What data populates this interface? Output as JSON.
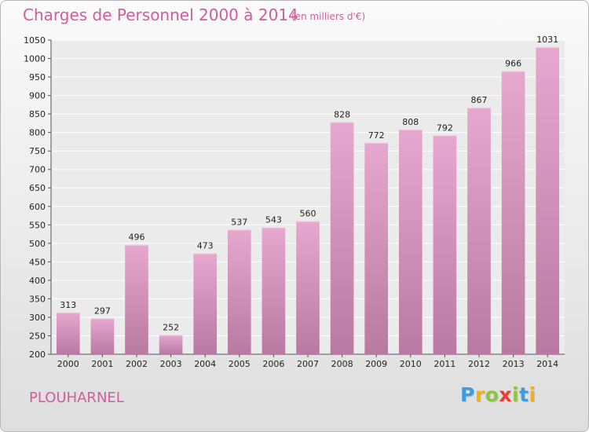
{
  "chart_data": {
    "type": "bar",
    "title": "Charges de Personnel 2000 à 2014",
    "subtitle": "(en milliers d'€)",
    "categories": [
      "2000",
      "2001",
      "2002",
      "2003",
      "2004",
      "2005",
      "2006",
      "2007",
      "2008",
      "2009",
      "2010",
      "2011",
      "2012",
      "2013",
      "2014"
    ],
    "values": [
      313,
      297,
      496,
      252,
      473,
      537,
      543,
      560,
      828,
      772,
      808,
      792,
      867,
      966,
      1031
    ],
    "ylim": [
      200,
      1050
    ],
    "ytick_step": 50,
    "xlabel": "",
    "ylabel": "",
    "grid": true,
    "bar_color": "#dc97c3"
  },
  "footer": {
    "commune": "PLOUHARNEL",
    "logo_letters": [
      {
        "ch": "P",
        "color": "#3b9de0"
      },
      {
        "ch": "r",
        "color": "#f0b020"
      },
      {
        "ch": "o",
        "color": "#8dc63f"
      },
      {
        "ch": "x",
        "color": "#e5412d"
      },
      {
        "ch": "i",
        "color": "#8dc63f"
      },
      {
        "ch": "t",
        "color": "#3b9de0"
      },
      {
        "ch": "i",
        "color": "#f0b020"
      }
    ]
  }
}
